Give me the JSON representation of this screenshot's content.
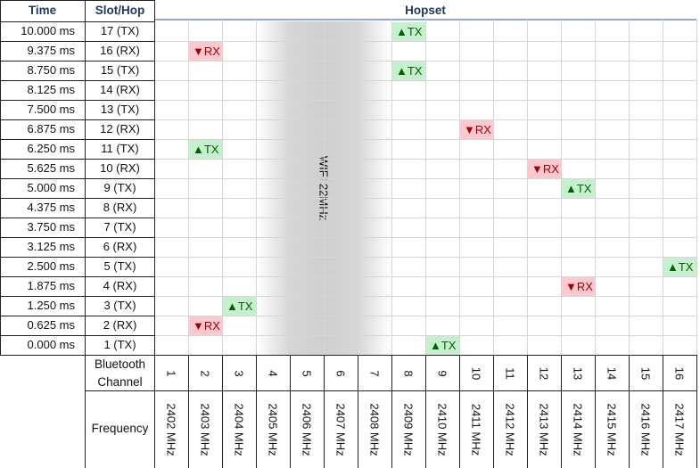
{
  "headers": {
    "time": "Time",
    "slot_hop": "Slot/Hop",
    "hopset": "Hopset"
  },
  "rows": [
    {
      "time": "10.000  ms",
      "slot": "17 (TX)"
    },
    {
      "time": "9.375  ms",
      "slot": "16 (RX)"
    },
    {
      "time": "8.750  ms",
      "slot": "15 (TX)"
    },
    {
      "time": "8.125  ms",
      "slot": "14 (RX)"
    },
    {
      "time": "7.500  ms",
      "slot": "13 (TX)"
    },
    {
      "time": "6.875  ms",
      "slot": "12 (RX)"
    },
    {
      "time": "6.250  ms",
      "slot": "11 (TX)"
    },
    {
      "time": "5.625  ms",
      "slot": "10 (RX)"
    },
    {
      "time": "5.000  ms",
      "slot": "9 (TX)"
    },
    {
      "time": "4.375  ms",
      "slot": "8 (RX)"
    },
    {
      "time": "3.750  ms",
      "slot": "7 (TX)"
    },
    {
      "time": "3.125  ms",
      "slot": "6 (RX)"
    },
    {
      "time": "2.500  ms",
      "slot": "5 (TX)"
    },
    {
      "time": "1.875  ms",
      "slot": "4 (RX)"
    },
    {
      "time": "1.250  ms",
      "slot": "3 (TX)"
    },
    {
      "time": "0.625  ms",
      "slot": "2 (RX)"
    },
    {
      "time": "0.000  ms",
      "slot": "1 (TX)"
    }
  ],
  "channels": [
    {
      "num": "1",
      "freq": "2402  MHz"
    },
    {
      "num": "2",
      "freq": "2403  MHz"
    },
    {
      "num": "3",
      "freq": "2404  MHz"
    },
    {
      "num": "4",
      "freq": "2405  MHz"
    },
    {
      "num": "5",
      "freq": "2406  MHz"
    },
    {
      "num": "6",
      "freq": "2407  MHz"
    },
    {
      "num": "7",
      "freq": "2408  MHz"
    },
    {
      "num": "8",
      "freq": "2409  MHz"
    },
    {
      "num": "9",
      "freq": "2410  MHz"
    },
    {
      "num": "10",
      "freq": "2411  MHz"
    },
    {
      "num": "11",
      "freq": "2412  MHz"
    },
    {
      "num": "12",
      "freq": "2413  MHz"
    },
    {
      "num": "13",
      "freq": "2414  MHz"
    },
    {
      "num": "14",
      "freq": "2415  MHz"
    },
    {
      "num": "15",
      "freq": "2416  MHz"
    },
    {
      "num": "16",
      "freq": "2417  MHz"
    }
  ],
  "hops": [
    {
      "row": 0,
      "channel": 8,
      "type": "tx",
      "label": "▲TX"
    },
    {
      "row": 1,
      "channel": 2,
      "type": "rx",
      "label": "▼RX"
    },
    {
      "row": 2,
      "channel": 8,
      "type": "tx",
      "label": "▲TX"
    },
    {
      "row": 5,
      "channel": 10,
      "type": "rx",
      "label": "▼RX"
    },
    {
      "row": 6,
      "channel": 2,
      "type": "tx",
      "label": "▲TX"
    },
    {
      "row": 7,
      "channel": 12,
      "type": "rx",
      "label": "▼RX"
    },
    {
      "row": 8,
      "channel": 13,
      "type": "tx",
      "label": "▲TX"
    },
    {
      "row": 12,
      "channel": 16,
      "type": "tx",
      "label": "▲TX"
    },
    {
      "row": 13,
      "channel": 13,
      "type": "rx",
      "label": "▼RX"
    },
    {
      "row": 14,
      "channel": 3,
      "type": "tx",
      "label": "▲TX"
    },
    {
      "row": 15,
      "channel": 2,
      "type": "rx",
      "label": "▼RX"
    },
    {
      "row": 16,
      "channel": 9,
      "type": "tx",
      "label": "▲TX"
    }
  ],
  "wifi": {
    "label": "WIFI 22MHz",
    "first_channel": 4,
    "last_channel": 7
  },
  "footer": {
    "bt_channel_label_line1": "Bluetooth",
    "bt_channel_label_line2": "Channel",
    "frequency_label": "Frequency"
  },
  "colors": {
    "tx_bg": "#c6efce",
    "tx_text": "#006100",
    "rx_bg": "#ffc7ce",
    "rx_text": "#9c0006",
    "header_text": "#1f3a60",
    "header_rule": "#8eaad6"
  }
}
